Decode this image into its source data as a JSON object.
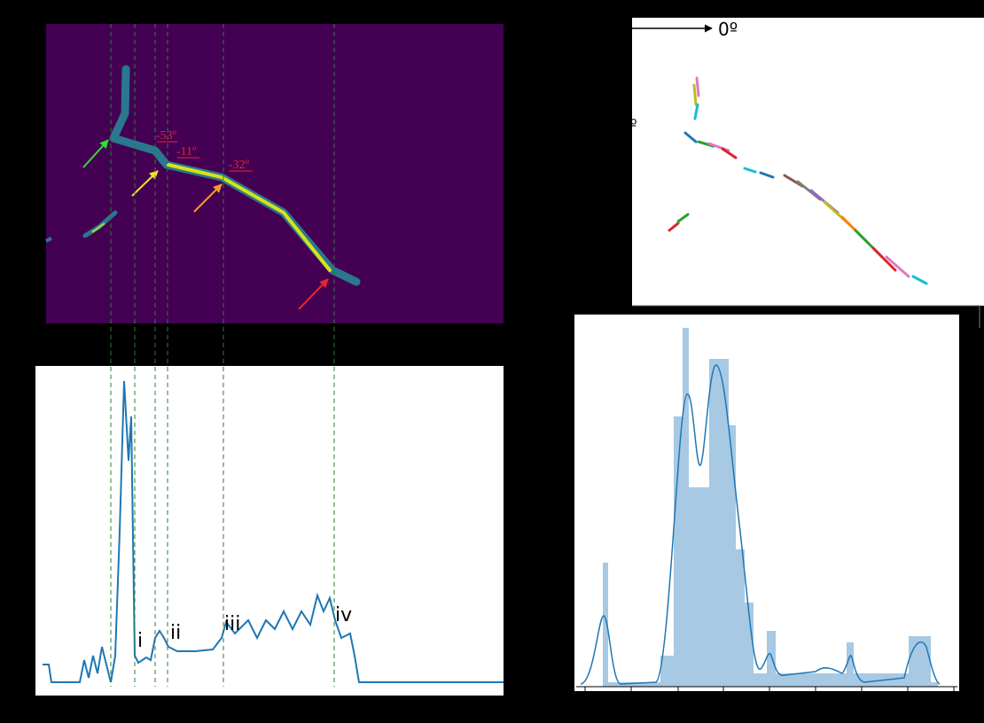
{
  "orientation": {
    "reference_angle": "0º",
    "partial_angle": "º"
  },
  "angles": [
    "-53º",
    "-11º",
    "-32º"
  ],
  "profile_labels": [
    "i",
    "ii",
    "iii",
    "iv"
  ]
}
